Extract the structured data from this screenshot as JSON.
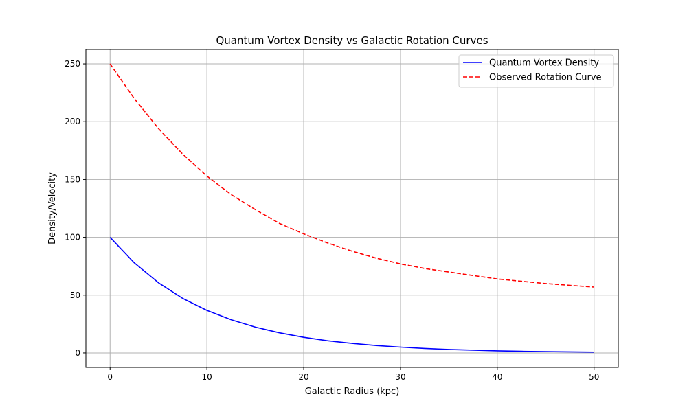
{
  "chart_data": {
    "type": "line",
    "title": "Quantum Vortex Density vs Galactic Rotation Curves",
    "xlabel": "Galactic Radius (kpc)",
    "ylabel": "Density/Velocity",
    "xlim": [
      -2.5,
      52.5
    ],
    "ylim": [
      -12.5,
      262.5
    ],
    "xticks": [
      0,
      10,
      20,
      30,
      40,
      50
    ],
    "yticks": [
      0,
      50,
      100,
      150,
      200,
      250
    ],
    "grid": true,
    "legend_position": "upper right",
    "series": [
      {
        "name": "Quantum Vortex Density",
        "color": "#0000ff",
        "style": "solid",
        "x": [
          0,
          2.5,
          5,
          7.5,
          10,
          12.5,
          15,
          17.5,
          20,
          22.5,
          25,
          27.5,
          30,
          32.5,
          35,
          37.5,
          40,
          42.5,
          45,
          47.5,
          50
        ],
        "y": [
          100,
          77.9,
          60.7,
          47.2,
          36.8,
          28.7,
          22.3,
          17.4,
          13.5,
          10.5,
          8.2,
          6.4,
          5.0,
          3.9,
          3.0,
          2.4,
          1.8,
          1.4,
          1.1,
          0.9,
          0.7
        ]
      },
      {
        "name": "Observed Rotation Curve",
        "color": "#ff0000",
        "style": "dashed",
        "x": [
          0,
          2.5,
          5,
          7.5,
          10,
          12.5,
          15,
          17.5,
          20,
          22.5,
          25,
          27.5,
          30,
          32.5,
          35,
          37.5,
          40,
          42.5,
          45,
          47.5,
          50
        ],
        "y": [
          250,
          220,
          194,
          172,
          153,
          137,
          124,
          112,
          103,
          95,
          88,
          82,
          77,
          73,
          70,
          67,
          64,
          62,
          60,
          58.5,
          57
        ]
      }
    ]
  }
}
